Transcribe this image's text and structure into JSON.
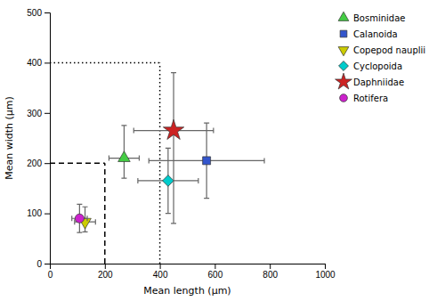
{
  "chart_data": {
    "type": "scatter",
    "xlabel": "Mean length (μm)",
    "ylabel": "Mean width (μm)",
    "xlim": [
      0,
      1000
    ],
    "ylim": [
      0,
      500
    ],
    "xticks": [
      0,
      200,
      400,
      600,
      800,
      1000
    ],
    "yticks": [
      0,
      100,
      200,
      300,
      400,
      500
    ],
    "series": [
      {
        "name": "Bosminidae",
        "color": "#44cc44",
        "marker": "triangle-up",
        "x": [
          270
        ],
        "values": [
          210
        ],
        "x_error_minus": [
          55
        ],
        "x_error_plus": [
          55
        ],
        "y_error_minus": [
          40
        ],
        "y_error_plus": [
          65
        ]
      },
      {
        "name": "Calanoida",
        "color": "#3355cc",
        "marker": "square",
        "x": [
          570
        ],
        "values": [
          205
        ],
        "x_error_minus": [
          210
        ],
        "x_error_plus": [
          210
        ],
        "y_error_minus": [
          75
        ],
        "y_error_plus": [
          75
        ]
      },
      {
        "name": "Copepod nauplii",
        "color": "#cccc00",
        "marker": "triangle-down",
        "x": [
          128
        ],
        "values": [
          83
        ],
        "x_error_minus": [
          38
        ],
        "x_error_plus": [
          38
        ],
        "y_error_minus": [
          20
        ],
        "y_error_plus": [
          30
        ]
      },
      {
        "name": "Cyclopoida",
        "color": "#00cccc",
        "marker": "diamond",
        "x": [
          430
        ],
        "values": [
          165
        ],
        "x_error_minus": [
          110
        ],
        "x_error_plus": [
          110
        ],
        "y_error_minus": [
          65
        ],
        "y_error_plus": [
          65
        ]
      },
      {
        "name": "Daphniidae",
        "color": "#cc2222",
        "marker": "star",
        "x": [
          450
        ],
        "values": [
          265
        ],
        "x_error_minus": [
          145
        ],
        "x_error_plus": [
          145
        ],
        "y_error_minus": [
          185
        ],
        "y_error_plus": [
          115
        ]
      },
      {
        "name": "Rotifera",
        "color": "#cc22cc",
        "marker": "circle",
        "x": [
          108
        ],
        "values": [
          90
        ],
        "x_error_minus": [
          28
        ],
        "x_error_plus": [
          28
        ],
        "y_error_minus": [
          28
        ],
        "y_error_plus": [
          28
        ]
      }
    ],
    "reference_lines": [
      {
        "x": 200,
        "y": 200,
        "line_style": "dashed"
      },
      {
        "x": 400,
        "y": 400,
        "line_style": "dotted"
      }
    ]
  }
}
